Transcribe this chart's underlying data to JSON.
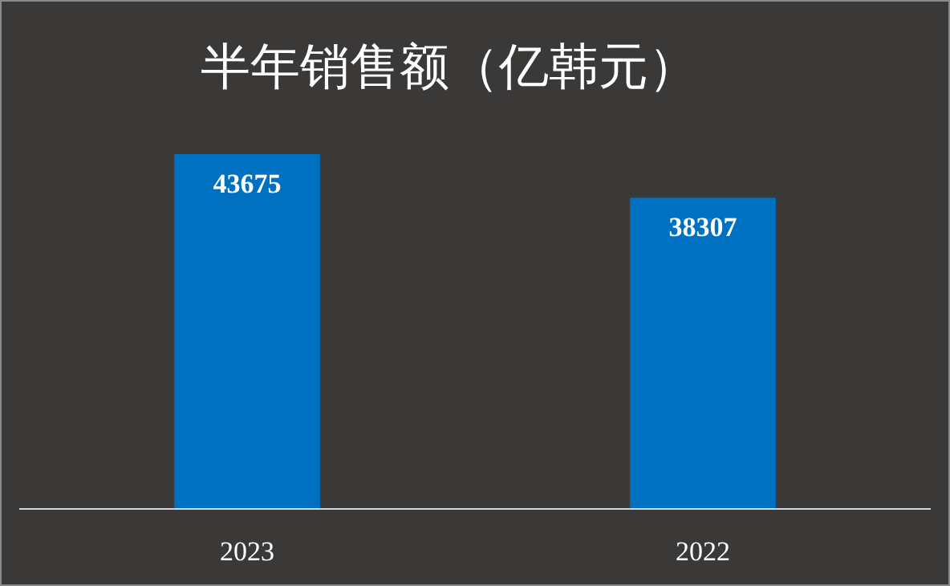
{
  "chart_data": {
    "type": "bar",
    "title": "半年销售额（亿韩元）",
    "categories": [
      "2023",
      "2022"
    ],
    "values": [
      43675,
      38307
    ],
    "color": "#0070c0",
    "data_labels": true
  }
}
